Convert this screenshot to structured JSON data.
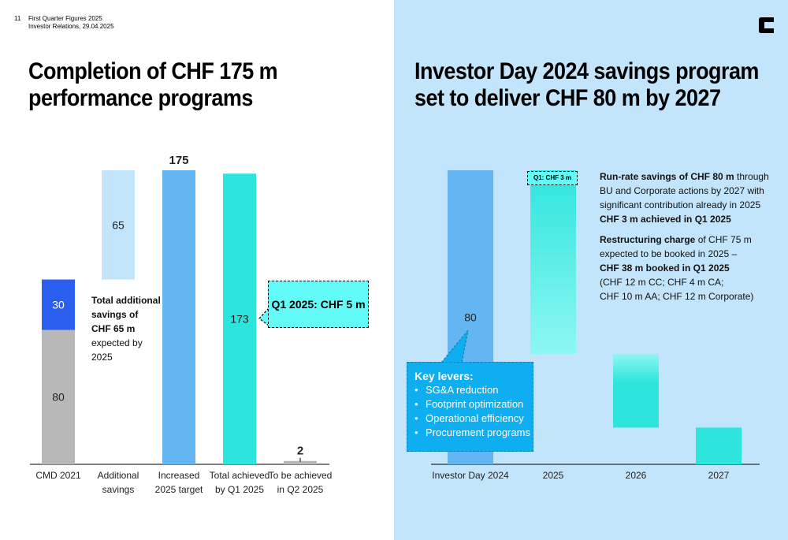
{
  "header": {
    "page_number": "11",
    "line1": "First Quarter Figures 2025",
    "line2": "Investor Relations, 29.04.2025",
    "logo_icon": "clariant-logo-icon"
  },
  "left": {
    "title_line1": "Completion of CHF 175 m",
    "title_line2": "performance programs",
    "note": {
      "bold1": "Total additional",
      "bold2": "savings of",
      "bold3": "CHF 65 m",
      "rest1": "expected by",
      "rest2": "2025"
    },
    "callout": "Q1 2025: CHF 5 m"
  },
  "right": {
    "title_line1": "Investor Day 2024 savings program",
    "title_line2": "set to deliver CHF 80 m by 2027",
    "q1_label": "Q1: CHF 3 m",
    "levers": {
      "title": "Key levers:",
      "items": [
        "SG&A reduction",
        "Footprint optimization",
        "Operational efficiency",
        "Procurement programs"
      ]
    },
    "text": {
      "p1_bold": "Run-rate savings of CHF 80 m",
      "p1_rest1": " through",
      "p1_rest2": "BU and Corporate actions by 2027 with",
      "p1_rest3": "significant contribution already in 2025",
      "p1_bold2": "CHF 3 m achieved in Q1 2025",
      "p2_bold": "Restructuring charge",
      "p2_rest1": " of CHF 75 m",
      "p2_rest2": "expected to be booked in 2025 –",
      "p2_bold2": "CHF 38 m booked in Q1 2025",
      "p2_rest3": "(CHF 12 m CC; CHF 4 m CA;",
      "p2_rest4": "CHF 10 m AA; CHF 12 m Corporate)"
    }
  },
  "chart_data": [
    {
      "type": "bar",
      "title": "Completion of CHF 175 m performance programs",
      "categories": [
        [
          "CMD 2021"
        ],
        [
          "Additional",
          "savings"
        ],
        [
          "Increased",
          "2025 target"
        ],
        [
          "Total achieved",
          "by Q1 2025"
        ],
        [
          "To be achieved",
          "in Q2 2025"
        ]
      ],
      "ylim": [
        0,
        175
      ],
      "bars": [
        {
          "category": 0,
          "segments": [
            {
              "base": 0,
              "value": 80,
              "label": "80",
              "color": "#b8b8b8"
            },
            {
              "base": 80,
              "value": 30,
              "label": "30",
              "color": "#2b5ff0",
              "label_color": "#ffffff"
            }
          ]
        },
        {
          "category": 1,
          "segments": [
            {
              "base": 110,
              "value": 65,
              "label": "65",
              "color": "#c3e5fb"
            }
          ]
        },
        {
          "category": 2,
          "segments": [
            {
              "base": 0,
              "value": 175,
              "label": "175",
              "color": "#63b6f1",
              "label_pos": "top"
            }
          ]
        },
        {
          "category": 3,
          "segments": [
            {
              "base": 0,
              "value": 173,
              "label": "173",
              "color": "#2ee5dd"
            }
          ]
        },
        {
          "category": 4,
          "segments": [
            {
              "base": 0,
              "value": 2,
              "label": "2",
              "color": "#b8b8b8",
              "label_pos": "top"
            }
          ]
        }
      ]
    },
    {
      "type": "bar",
      "title": "Investor Day 2024 savings program set to deliver CHF 80 m by 2027",
      "categories": [
        [
          "Investor Day 2024"
        ],
        [
          "2025"
        ],
        [
          "2026"
        ],
        [
          "2027"
        ]
      ],
      "ylim": [
        0,
        80
      ],
      "bars": [
        {
          "category": 0,
          "segments": [
            {
              "base": 0,
              "value": 80,
              "label": "80",
              "color": "#63b6f1"
            }
          ]
        },
        {
          "category": 1,
          "segments": [
            {
              "base": 30,
              "value": 50,
              "color": "#2ee5dd",
              "gradient_to": "#8ef7f2"
            }
          ]
        },
        {
          "category": 2,
          "segments": [
            {
              "base": 10,
              "value": 20,
              "color": "#2ee5dd",
              "gradient_top": "#8ef7f2"
            }
          ]
        },
        {
          "category": 3,
          "segments": [
            {
              "base": 0,
              "value": 10,
              "color": "#2ee5dd"
            }
          ]
        }
      ]
    }
  ]
}
